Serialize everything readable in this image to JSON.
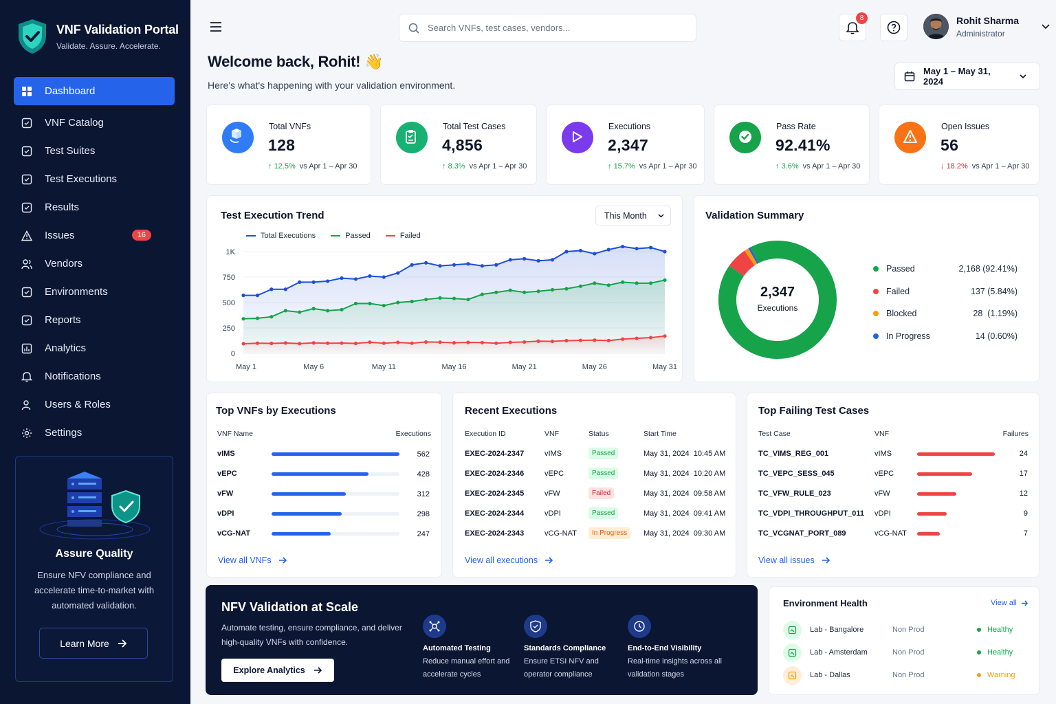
{
  "brand": {
    "title": "VNF Validation Portal",
    "subtitle": "Validate. Assure. Accelerate."
  },
  "nav": [
    {
      "label": "Dashboard",
      "icon": "grid-icon",
      "active": true
    },
    {
      "label": "VNF Catalog",
      "icon": "catalog-icon"
    },
    {
      "label": "Test Suites",
      "icon": "checklist-icon"
    },
    {
      "label": "Test Executions",
      "icon": "clipboard-icon"
    },
    {
      "label": "Results",
      "icon": "shield-check-icon"
    },
    {
      "label": "Issues",
      "icon": "warning-icon",
      "badge": "16"
    },
    {
      "label": "Vendors",
      "icon": "users-icon"
    },
    {
      "label": "Environments",
      "icon": "cube-icon"
    },
    {
      "label": "Reports",
      "icon": "report-icon"
    },
    {
      "label": "Analytics",
      "icon": "bar-chart-icon"
    },
    {
      "label": "Notifications",
      "icon": "bell-icon"
    },
    {
      "label": "Users & Roles",
      "icon": "user-roles-icon"
    },
    {
      "label": "Settings",
      "icon": "gear-icon"
    }
  ],
  "promo": {
    "title": "Assure Quality",
    "text": "Ensure NFV compliance and accelerate time-to-market with automated validation.",
    "button": "Learn More"
  },
  "search": {
    "placeholder": "Search VNFs, test cases, vendors..."
  },
  "notifications": {
    "count": "8"
  },
  "user": {
    "name": "Rohit Sharma",
    "role": "Administrator"
  },
  "welcome": {
    "title": "Welcome back, Rohit! 👋",
    "subtitle": "Here's what's happening with your validation environment."
  },
  "date_range": "May 1 – May 31, 2024",
  "kpis": [
    {
      "label": "Total VNFs",
      "value": "128",
      "delta": "12.5%",
      "dir": "up",
      "compare": "vs Apr 1 – Apr 30",
      "color": "#2f7cf6"
    },
    {
      "label": "Total Test Cases",
      "value": "4,856",
      "delta": "8.3%",
      "dir": "up",
      "compare": "vs Apr 1 – Apr 30",
      "color": "#16b173"
    },
    {
      "label": "Executions",
      "value": "2,347",
      "delta": "15.7%",
      "dir": "up",
      "compare": "vs Apr 1 – Apr 30",
      "color": "#7c3aed"
    },
    {
      "label": "Pass Rate",
      "value": "92.41%",
      "delta": "3.6%",
      "dir": "up",
      "compare": "vs Apr 1 – Apr 30",
      "color": "#16a34a"
    },
    {
      "label": "Open Issues",
      "value": "56",
      "delta": "18.2%",
      "dir": "down",
      "compare": "vs Apr 1 – Apr 30",
      "color": "#f97316"
    }
  ],
  "trend": {
    "title": "Test Execution Trend",
    "period": "This Month"
  },
  "chart_data": {
    "type": "area",
    "x": [
      "May 1",
      "May 2",
      "May 3",
      "May 4",
      "May 5",
      "May 6",
      "May 7",
      "May 8",
      "May 9",
      "May 10",
      "May 11",
      "May 12",
      "May 13",
      "May 14",
      "May 15",
      "May 16",
      "May 17",
      "May 18",
      "May 19",
      "May 20",
      "May 21",
      "May 22",
      "May 23",
      "May 24",
      "May 25",
      "May 26",
      "May 27",
      "May 28",
      "May 29",
      "May 30",
      "May 31"
    ],
    "xticks": [
      "May 1",
      "May 6",
      "May 11",
      "May 16",
      "May 21",
      "May 26",
      "May 31"
    ],
    "yticks": [
      "0",
      "250",
      "500",
      "750",
      "1K"
    ],
    "ylim": [
      0,
      1000
    ],
    "series": [
      {
        "name": "Total Executions",
        "color": "#1d4ed8",
        "values": [
          570,
          570,
          630,
          630,
          700,
          700,
          710,
          740,
          730,
          760,
          750,
          790,
          870,
          890,
          860,
          870,
          880,
          860,
          870,
          920,
          930,
          910,
          920,
          1000,
          1010,
          980,
          1020,
          1050,
          1030,
          1040,
          1000
        ]
      },
      {
        "name": "Passed",
        "color": "#16a34a",
        "values": [
          340,
          345,
          360,
          420,
          405,
          440,
          420,
          430,
          490,
          490,
          470,
          500,
          510,
          530,
          545,
          540,
          530,
          580,
          600,
          620,
          600,
          610,
          625,
          635,
          660,
          690,
          670,
          700,
          690,
          690,
          720
        ]
      },
      {
        "name": "Failed",
        "color": "#ef4444",
        "values": [
          95,
          100,
          98,
          102,
          96,
          103,
          100,
          101,
          98,
          110,
          100,
          108,
          100,
          112,
          110,
          104,
          108,
          106,
          100,
          108,
          112,
          120,
          118,
          125,
          128,
          130,
          126,
          140,
          148,
          155,
          170
        ]
      }
    ]
  },
  "summary": {
    "title": "Validation Summary",
    "total": "2,347",
    "total_label": "Executions",
    "items": [
      {
        "name": "Passed",
        "count": "2,168 (92.41%)",
        "pct": 92.41,
        "color": "#16a34a"
      },
      {
        "name": "Failed",
        "count": "137 (5.84%)",
        "pct": 5.84,
        "color": "#ef4444"
      },
      {
        "name": "Blocked",
        "count": "28  (1.19%)",
        "pct": 1.19,
        "color": "#f59e0b"
      },
      {
        "name": "In Progress",
        "count": "14 (0.60%)",
        "pct": 0.6,
        "color": "#2563eb"
      }
    ]
  },
  "top_vnfs": {
    "title": "Top VNFs by Executions",
    "col1": "VNF Name",
    "col2": "Executions",
    "link": "View all VNFs",
    "rows": [
      {
        "name": "vIMS",
        "value": "562",
        "frac": 1.0
      },
      {
        "name": "vEPC",
        "value": "428",
        "frac": 0.76
      },
      {
        "name": "vFW",
        "value": "312",
        "frac": 0.58
      },
      {
        "name": "vDPI",
        "value": "298",
        "frac": 0.55
      },
      {
        "name": "vCG-NAT",
        "value": "247",
        "frac": 0.46
      }
    ]
  },
  "recent": {
    "title": "Recent Executions",
    "cols": [
      "Execution ID",
      "VNF",
      "Status",
      "Start Time"
    ],
    "link": "View all executions",
    "rows": [
      {
        "id": "EXEC-2024-2347",
        "vnf": "vIMS",
        "status": "Passed",
        "time": "May 31, 2024  10:45 AM"
      },
      {
        "id": "EXEC-2024-2346",
        "vnf": "vEPC",
        "status": "Passed",
        "time": "May 31, 2024  10:20 AM"
      },
      {
        "id": "EXEC-2024-2345",
        "vnf": "vFW",
        "status": "Failed",
        "time": "May 31, 2024  09:58 AM"
      },
      {
        "id": "EXEC-2024-2344",
        "vnf": "vDPI",
        "status": "Passed",
        "time": "May 31, 2024  09:41 AM"
      },
      {
        "id": "EXEC-2024-2343",
        "vnf": "vCG-NAT",
        "status": "In Progress",
        "time": "May 31, 2024  09:30 AM"
      }
    ]
  },
  "failing": {
    "title": "Top Failing Test Cases",
    "cols": [
      "Test Case",
      "VNF",
      "Failures"
    ],
    "link": "View all issues",
    "rows": [
      {
        "name": "TC_VIMS_REG_001",
        "vnf": "vIMS",
        "value": "24",
        "frac": 1.0
      },
      {
        "name": "TC_VEPC_SESS_045",
        "vnf": "vEPC",
        "value": "17",
        "frac": 0.71
      },
      {
        "name": "TC_VFW_RULE_023",
        "vnf": "vFW",
        "value": "12",
        "frac": 0.5
      },
      {
        "name": "TC_VDPI_THROUGHPUT_011",
        "vnf": "vDPI",
        "value": "9",
        "frac": 0.38
      },
      {
        "name": "TC_VCGNAT_PORT_089",
        "vnf": "vCG-NAT",
        "value": "7",
        "frac": 0.29
      }
    ]
  },
  "banner": {
    "title": "NFV Validation at Scale",
    "text": "Automate testing, ensure compliance, and deliver high-quality VNFs with confidence.",
    "button": "Explore Analytics",
    "features": [
      {
        "title": "Automated Testing",
        "desc": "Reduce manual effort and accelerate cycles"
      },
      {
        "title": "Standards Compliance",
        "desc": "Ensure ETSI NFV and operator compliance"
      },
      {
        "title": "End-to-End Visibility",
        "desc": "Real-time insights across all validation stages"
      }
    ]
  },
  "env": {
    "title": "Environment Health",
    "link": "View all",
    "rows": [
      {
        "name": "Lab - Bangalore",
        "type": "Non Prod",
        "status": "Healthy",
        "color": "#16a34a"
      },
      {
        "name": "Lab - Amsterdam",
        "type": "Non Prod",
        "status": "Healthy",
        "color": "#16a34a"
      },
      {
        "name": "Lab - Dallas",
        "type": "Non Prod",
        "status": "Warning",
        "color": "#f59e0b"
      }
    ]
  }
}
